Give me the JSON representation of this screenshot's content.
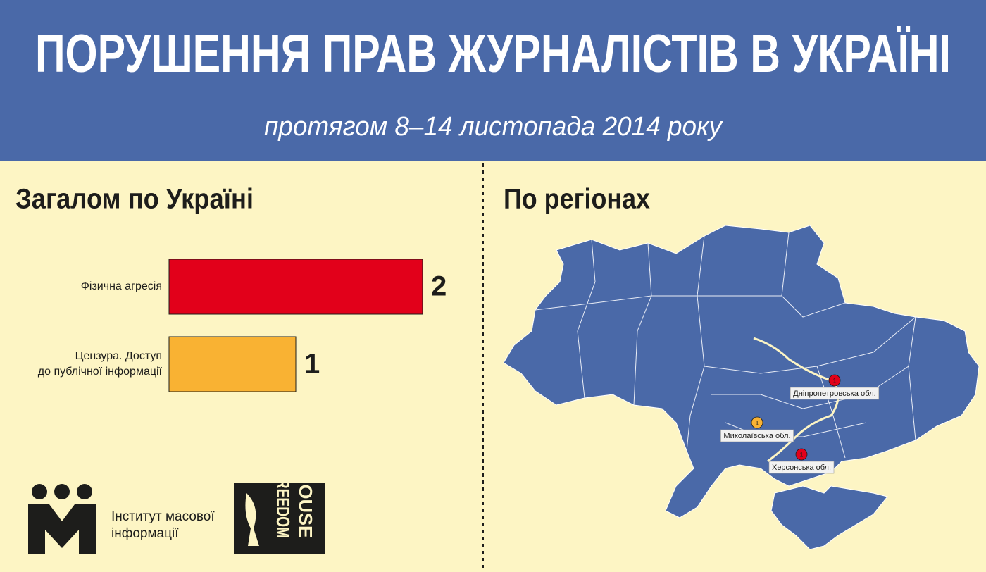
{
  "header": {
    "title": "ПОРУШЕННЯ ПРАВ ЖУРНАЛІСТІВ В УКРАЇНІ",
    "subtitle": "протягом 8–14 листопада 2014 року"
  },
  "left_title": "Загалом по Україні",
  "chart_data": {
    "type": "bar",
    "orientation": "horizontal",
    "categories": [
      "Фізична агресія",
      "Цензура. Доступ\nдо публічної інформації"
    ],
    "values": [
      2,
      1
    ],
    "colors": [
      "#e2001a",
      "#f9b233"
    ]
  },
  "right_title": "По регіонах",
  "map": {
    "regions": [
      {
        "label": "Дніпропетровська обл.",
        "value": 1,
        "color": "#e2001a"
      },
      {
        "label": "Миколаївська обл.",
        "value": 1,
        "color": "#f9b233"
      },
      {
        "label": "Херсонська обл.",
        "value": 1,
        "color": "#e2001a"
      }
    ]
  },
  "logos": {
    "imi": "Інститут масової\nінформації",
    "freedom_house": [
      "FREEDOM",
      "HOUSE"
    ]
  }
}
